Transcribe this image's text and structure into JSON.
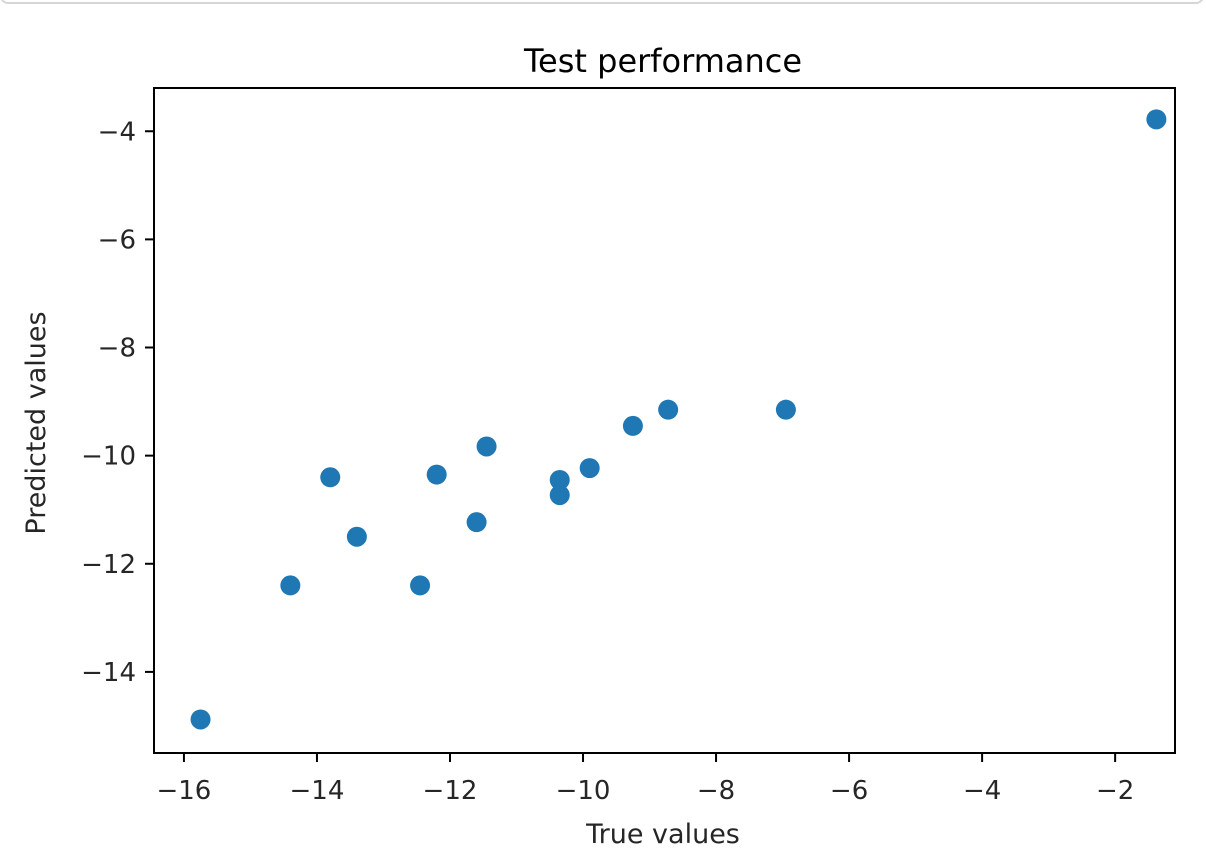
{
  "chart_data": {
    "type": "scatter",
    "title": "Test performance",
    "xlabel": "True values",
    "ylabel": "Predicted values",
    "xlim": [
      -16.45,
      -1.1
    ],
    "ylim": [
      -15.5,
      -3.2
    ],
    "xticks": [
      -16,
      -14,
      -12,
      -10,
      -8,
      -6,
      -4,
      -2
    ],
    "yticks": [
      -14,
      -12,
      -10,
      -8,
      -6,
      -4
    ],
    "marker_color": "#1f77b4",
    "grid": false,
    "points": [
      {
        "x": -15.75,
        "y": -14.88
      },
      {
        "x": -14.4,
        "y": -12.4
      },
      {
        "x": -13.8,
        "y": -10.4
      },
      {
        "x": -13.4,
        "y": -11.5
      },
      {
        "x": -12.45,
        "y": -12.4
      },
      {
        "x": -12.2,
        "y": -10.35
      },
      {
        "x": -11.6,
        "y": -11.23
      },
      {
        "x": -11.45,
        "y": -9.83
      },
      {
        "x": -10.35,
        "y": -10.45
      },
      {
        "x": -10.35,
        "y": -10.73
      },
      {
        "x": -9.9,
        "y": -10.23
      },
      {
        "x": -9.25,
        "y": -9.45
      },
      {
        "x": -8.72,
        "y": -9.15
      },
      {
        "x": -6.95,
        "y": -9.15
      },
      {
        "x": -1.38,
        "y": -3.78
      }
    ]
  }
}
